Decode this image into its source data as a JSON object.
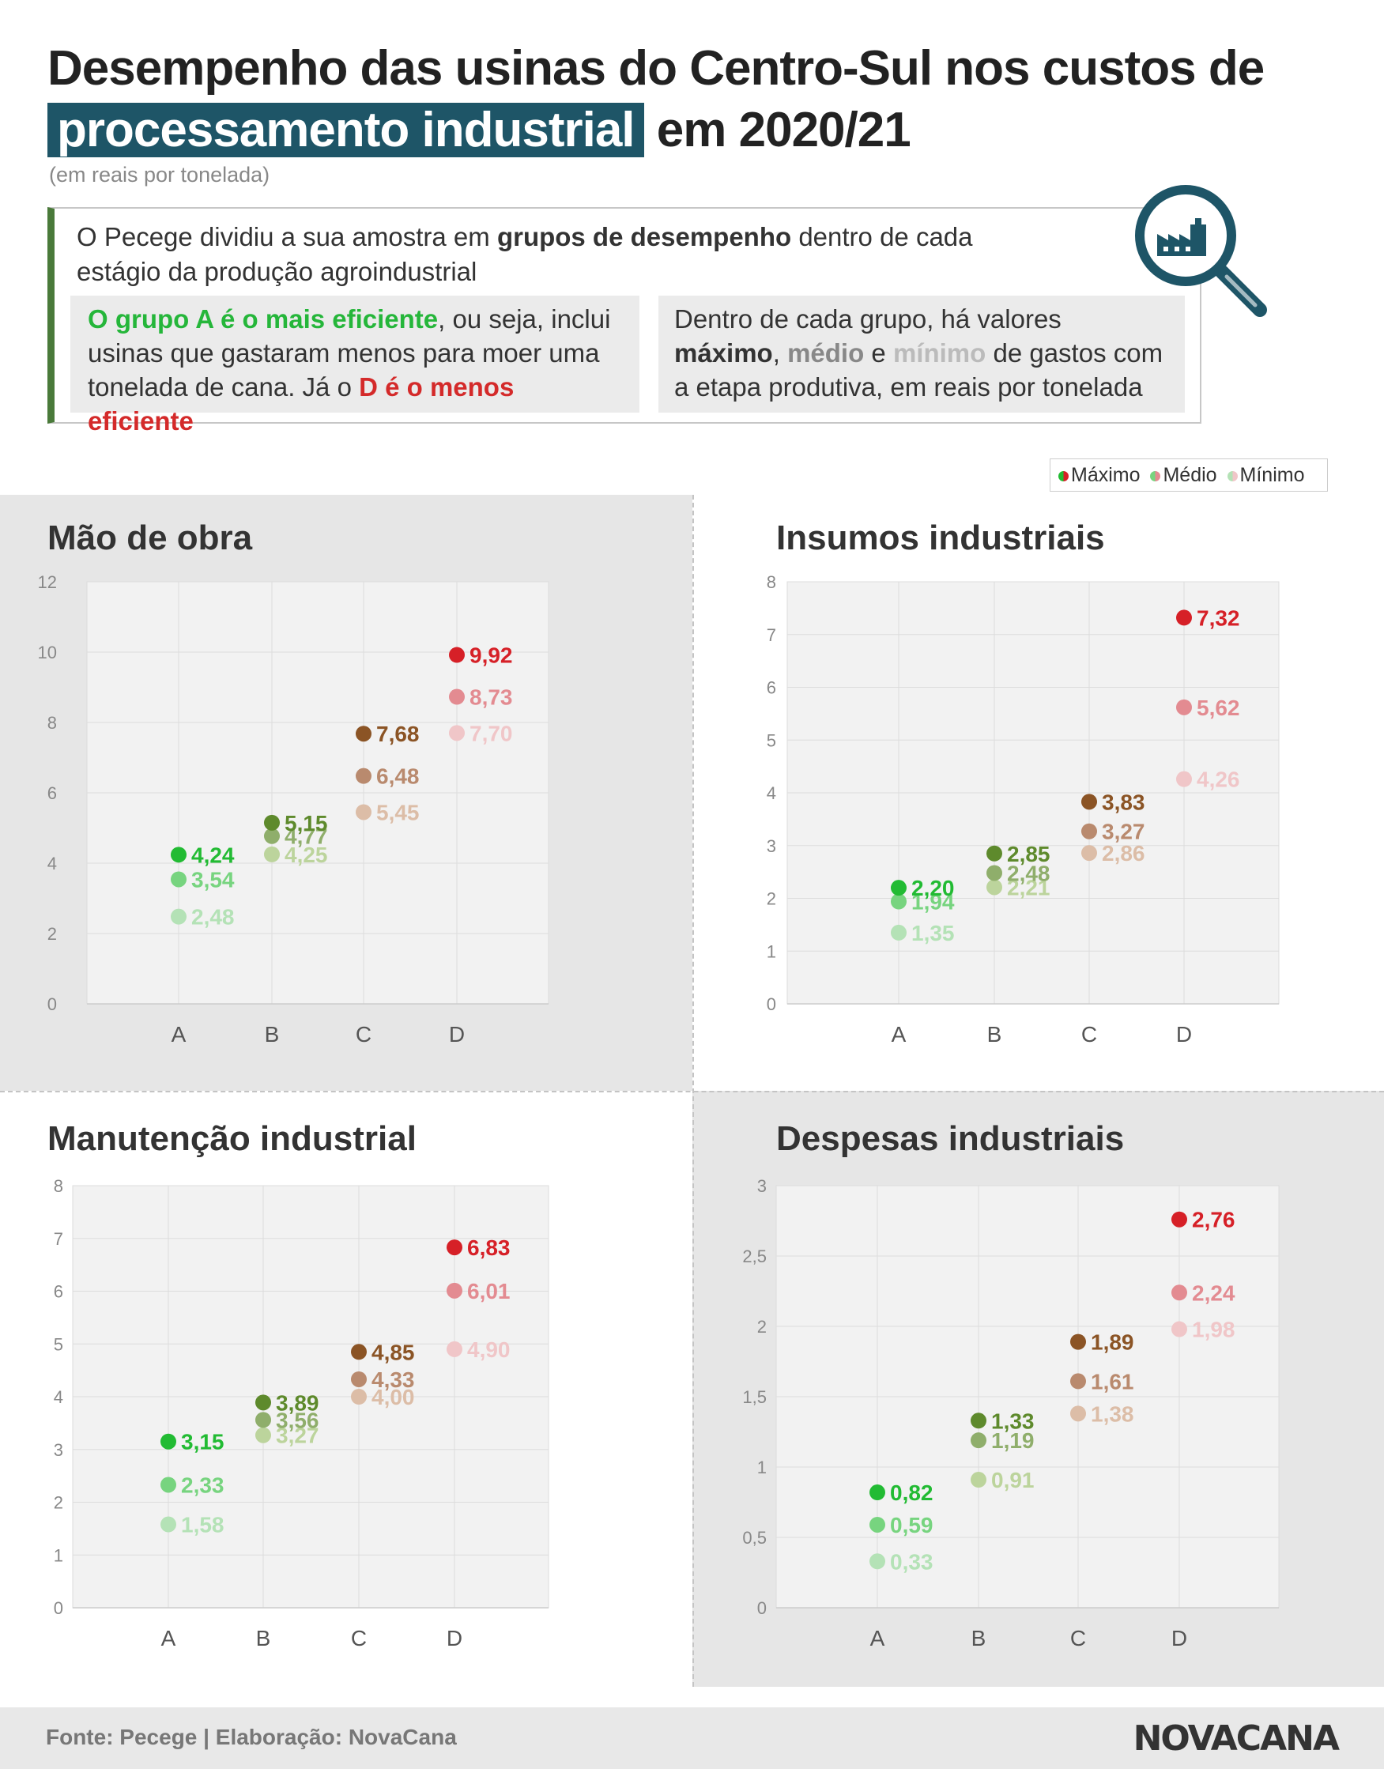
{
  "header": {
    "title_part1": "Desempenho das usinas do Centro-Sul nos custos de",
    "title_highlight": "processamento industrial",
    "title_part2": "em 2020/21",
    "subtitle": "(em reais por tonelada)"
  },
  "info": {
    "intro_a": "O Pecege dividiu a sua amostra em ",
    "intro_bold": "grupos de desempenho",
    "intro_b": " dentro de cada estágio da produção agroindustrial",
    "box_a_green": "O grupo A é o mais eficiente",
    "box_a_mid": ", ou seja, inclui usinas que gastaram menos para moer uma tonelada de cana. Já o ",
    "box_a_red": "D é o menos eficiente",
    "box_b_a": "Dentro de cada grupo, há valores ",
    "box_b_max": "máximo",
    "box_b_sep": ", ",
    "box_b_mid": "médio",
    "box_b_and": " e ",
    "box_b_min": "mínimo",
    "box_b_end": " de gastos com a etapa produtiva, em reais por tonelada"
  },
  "legend": {
    "max": "Máximo",
    "mid": "Médio",
    "min": "Mínimo"
  },
  "colors": {
    "A": [
      "#22bb33",
      "#77d47f",
      "#b4e2b6"
    ],
    "B": [
      "#5e8a2c",
      "#8fae6b",
      "#bcd49c"
    ],
    "C": [
      "#8b5425",
      "#b98a6e",
      "#dcbda7"
    ],
    "D": [
      "#d62027",
      "#e38b91",
      "#f0c6c8"
    ],
    "brand_teal": "#1e5567"
  },
  "chart_data": [
    {
      "type": "scatter",
      "title": "Mão de obra",
      "categories": [
        "A",
        "B",
        "C",
        "D"
      ],
      "ylim": [
        0,
        12
      ],
      "yticks": [
        0,
        2,
        4,
        6,
        8,
        10,
        12
      ],
      "series": [
        {
          "name": "Máximo",
          "values": [
            4.24,
            5.15,
            7.68,
            9.92
          ],
          "labels": [
            "4,24",
            "5,15",
            "7,68",
            "9,92"
          ]
        },
        {
          "name": "Médio",
          "values": [
            3.54,
            4.77,
            6.48,
            8.73
          ],
          "labels": [
            "3,54",
            "4,77",
            "6,48",
            "8,73"
          ]
        },
        {
          "name": "Mínimo",
          "values": [
            2.48,
            4.25,
            5.45,
            7.7
          ],
          "labels": [
            "2,48",
            "4,25",
            "5,45",
            "7,70"
          ]
        }
      ]
    },
    {
      "type": "scatter",
      "title": "Insumos industriais",
      "categories": [
        "A",
        "B",
        "C",
        "D"
      ],
      "ylim": [
        0,
        8
      ],
      "yticks": [
        0,
        1,
        2,
        3,
        4,
        5,
        6,
        7,
        8
      ],
      "series": [
        {
          "name": "Máximo",
          "values": [
            2.2,
            2.85,
            3.83,
            7.32
          ],
          "labels": [
            "2,20",
            "2,85",
            "3,83",
            "7,32"
          ]
        },
        {
          "name": "Médio",
          "values": [
            1.94,
            2.48,
            3.27,
            5.62
          ],
          "labels": [
            "1,94",
            "2,48",
            "3,27",
            "5,62"
          ]
        },
        {
          "name": "Mínimo",
          "values": [
            1.35,
            2.21,
            2.86,
            4.26
          ],
          "labels": [
            "1,35",
            "2,21",
            "2,86",
            "4,26"
          ]
        }
      ]
    },
    {
      "type": "scatter",
      "title": "Manutenção industrial",
      "categories": [
        "A",
        "B",
        "C",
        "D"
      ],
      "ylim": [
        0,
        8
      ],
      "yticks": [
        0,
        1,
        2,
        3,
        4,
        5,
        6,
        7,
        8
      ],
      "series": [
        {
          "name": "Máximo",
          "values": [
            3.15,
            3.89,
            4.85,
            6.83
          ],
          "labels": [
            "3,15",
            "3,89",
            "4,85",
            "6,83"
          ]
        },
        {
          "name": "Médio",
          "values": [
            2.33,
            3.56,
            4.33,
            6.01
          ],
          "labels": [
            "2,33",
            "3,56",
            "4,33",
            "6,01"
          ]
        },
        {
          "name": "Mínimo",
          "values": [
            1.58,
            3.27,
            4.0,
            4.9
          ],
          "labels": [
            "1,58",
            "3,27",
            "4,00",
            "4,90"
          ]
        }
      ]
    },
    {
      "type": "scatter",
      "title": "Despesas industriais",
      "categories": [
        "A",
        "B",
        "C",
        "D"
      ],
      "ylim": [
        0,
        3
      ],
      "yticks": [
        0,
        0.5,
        1,
        1.5,
        2,
        2.5,
        3
      ],
      "ytick_labels": [
        "0",
        "0,5",
        "1",
        "1,5",
        "2",
        "2,5",
        "3"
      ],
      "series": [
        {
          "name": "Máximo",
          "values": [
            0.82,
            1.33,
            1.89,
            2.76
          ],
          "labels": [
            "0,82",
            "1,33",
            "1,89",
            "2,76"
          ]
        },
        {
          "name": "Médio",
          "values": [
            0.59,
            1.19,
            1.61,
            2.24
          ],
          "labels": [
            "0,59",
            "1,19",
            "1,61",
            "2,24"
          ]
        },
        {
          "name": "Mínimo",
          "values": [
            0.33,
            0.91,
            1.38,
            1.98
          ],
          "labels": [
            "0,33",
            "0,91",
            "1,38",
            "1,98"
          ]
        }
      ]
    }
  ],
  "footer": {
    "source": "Fonte: Pecege | Elaboração: NovaCana",
    "brand": "NOVACANA"
  }
}
